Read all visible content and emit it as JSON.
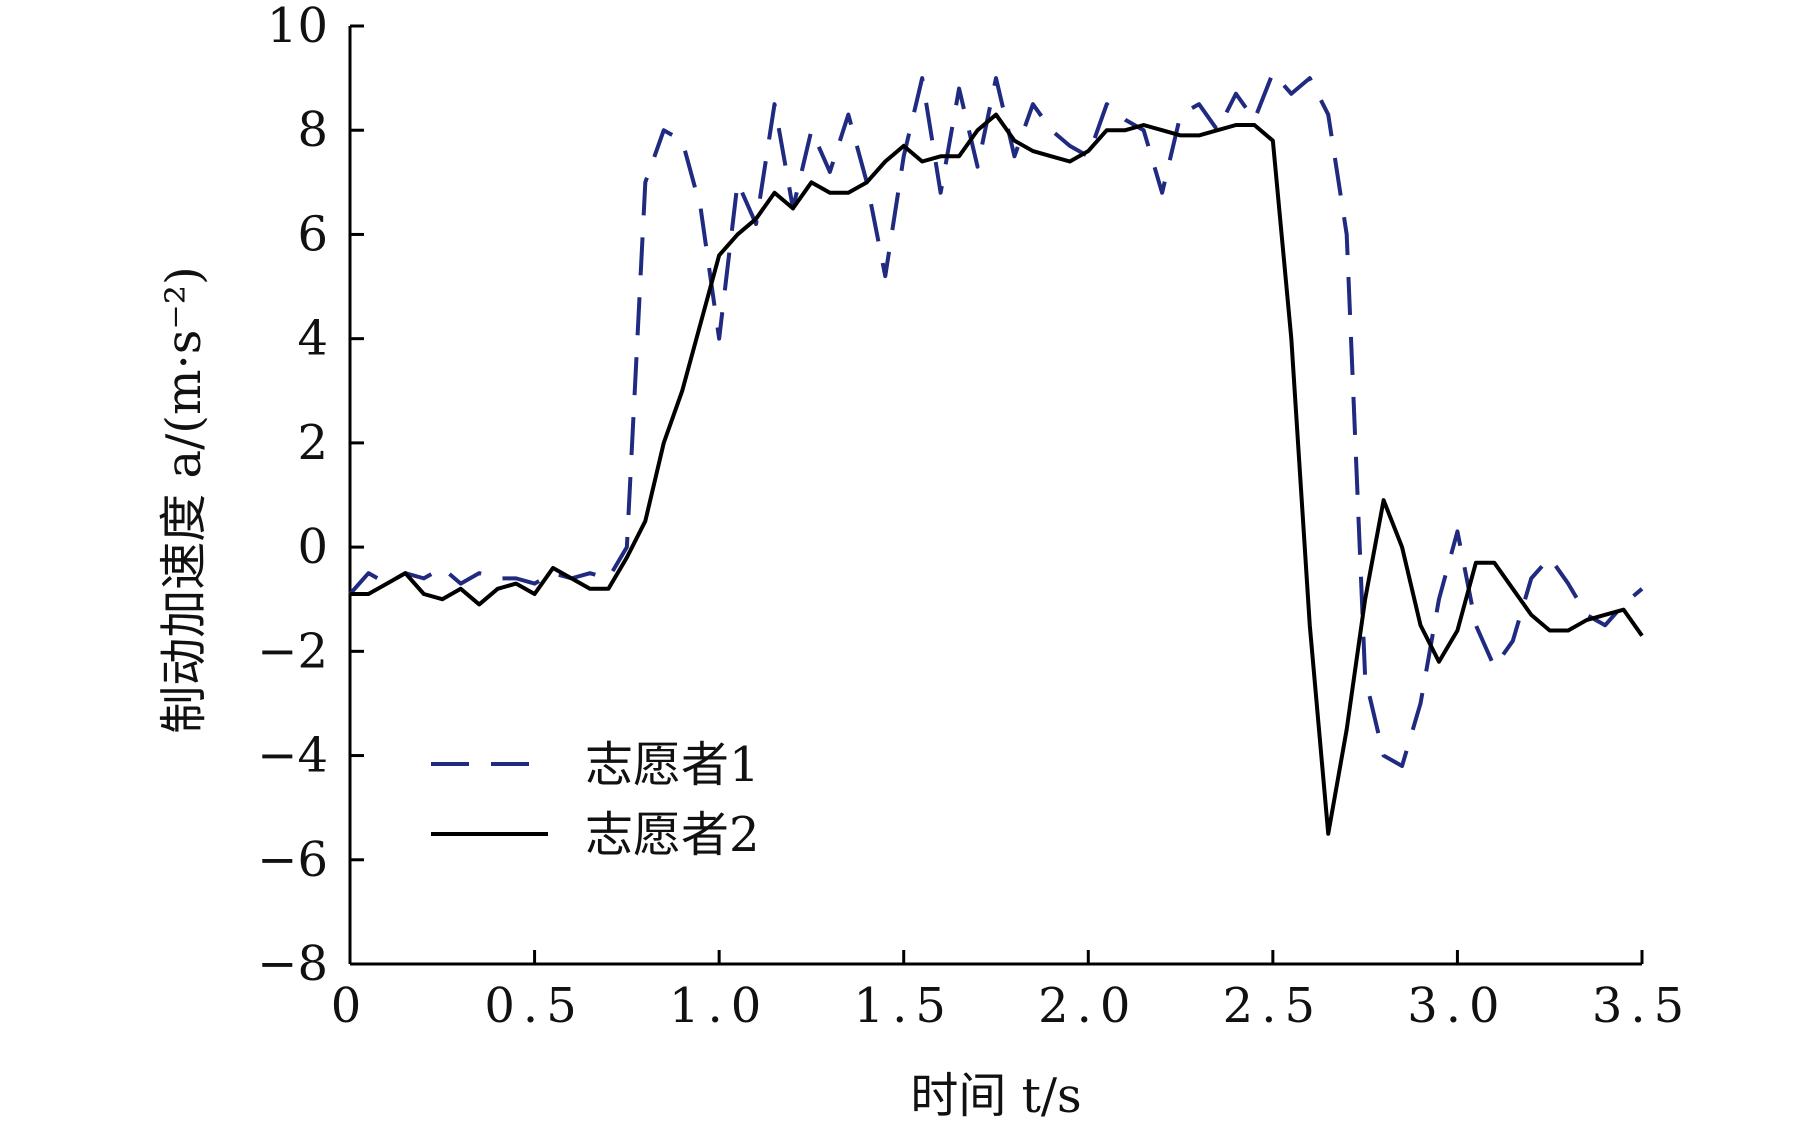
{
  "chart_data": {
    "type": "line",
    "x_label": "时间 t/s",
    "y_label": "制动加速度 a/(m·s⁻²)",
    "x": [
      0,
      0.05,
      0.1,
      0.15,
      0.2,
      0.25,
      0.3,
      0.35,
      0.4,
      0.45,
      0.5,
      0.55,
      0.6,
      0.65,
      0.7,
      0.75,
      0.8,
      0.85,
      0.9,
      0.95,
      1,
      1.05,
      1.1,
      1.15,
      1.2,
      1.25,
      1.3,
      1.35,
      1.4,
      1.45,
      1.5,
      1.55,
      1.6,
      1.65,
      1.7,
      1.75,
      1.8,
      1.85,
      1.9,
      1.95,
      2,
      2.05,
      2.1,
      2.15,
      2.2,
      2.25,
      2.3,
      2.35,
      2.4,
      2.45,
      2.5,
      2.55,
      2.6,
      2.65,
      2.7,
      2.75,
      2.8,
      2.85,
      2.9,
      2.95,
      3,
      3.05,
      3.1,
      3.15,
      3.2,
      3.25,
      3.3,
      3.35,
      3.4,
      3.45,
      3.5
    ],
    "series": [
      {
        "name": "志愿者1",
        "color": "#1f2a80",
        "dash": true,
        "values": [
          -0.9,
          -0.5,
          -0.7,
          -0.5,
          -0.6,
          -0.4,
          -0.7,
          -0.5,
          -0.6,
          -0.6,
          -0.7,
          -0.5,
          -0.6,
          -0.5,
          -0.6,
          0.0,
          7.0,
          8.0,
          7.8,
          6.5,
          4.0,
          7.0,
          6.2,
          8.5,
          6.5,
          8.0,
          7.2,
          8.3,
          7.0,
          5.2,
          7.5,
          9.0,
          6.8,
          8.8,
          7.3,
          9.0,
          7.5,
          8.5,
          8.0,
          7.7,
          7.5,
          8.5,
          8.2,
          8.0,
          6.8,
          8.3,
          8.5,
          8.0,
          8.7,
          8.2,
          9.1,
          8.7,
          9.0,
          8.3,
          6.0,
          -2.5,
          -4.0,
          -4.2,
          -3.0,
          -1.0,
          0.3,
          -1.5,
          -2.3,
          -1.8,
          -0.6,
          -0.2,
          -0.7,
          -1.3,
          -1.5,
          -1.1,
          -0.8
        ]
      },
      {
        "name": "志愿者2",
        "color": "#000000",
        "dash": false,
        "values": [
          -0.9,
          -0.9,
          -0.7,
          -0.5,
          -0.9,
          -1.0,
          -0.8,
          -1.1,
          -0.8,
          -0.7,
          -0.9,
          -0.4,
          -0.6,
          -0.8,
          -0.8,
          -0.2,
          0.5,
          2.0,
          3.0,
          4.3,
          5.6,
          6.0,
          6.3,
          6.8,
          6.5,
          7.0,
          6.8,
          6.8,
          7.0,
          7.4,
          7.7,
          7.4,
          7.5,
          7.5,
          8.0,
          8.3,
          7.8,
          7.6,
          7.5,
          7.4,
          7.6,
          8.0,
          8.0,
          8.1,
          8.0,
          7.9,
          7.9,
          8.0,
          8.1,
          8.1,
          7.8,
          4.0,
          -1.5,
          -5.5,
          -3.5,
          -1.0,
          0.9,
          0.0,
          -1.5,
          -2.2,
          -1.6,
          -0.3,
          -0.3,
          -0.8,
          -1.3,
          -1.6,
          -1.6,
          -1.4,
          -1.3,
          -1.2,
          -1.7
        ]
      }
    ],
    "xlim": [
      0,
      3.5
    ],
    "ylim": [
      -8,
      10
    ],
    "xticks": [
      0,
      0.5,
      {
        "value": 1,
        "label": "1.0"
      },
      1.5,
      {
        "value": 2,
        "label": "2.0"
      },
      2.5,
      {
        "value": 3,
        "label": "3.0"
      },
      3.5
    ],
    "yticks": [
      {
        "value": -8,
        "label": "−8"
      },
      {
        "value": -6,
        "label": "−6"
      },
      {
        "value": -4,
        "label": "−4"
      },
      {
        "value": -2,
        "label": "−2"
      },
      0,
      2,
      4,
      6,
      8,
      10
    ],
    "legend": "lower left"
  }
}
